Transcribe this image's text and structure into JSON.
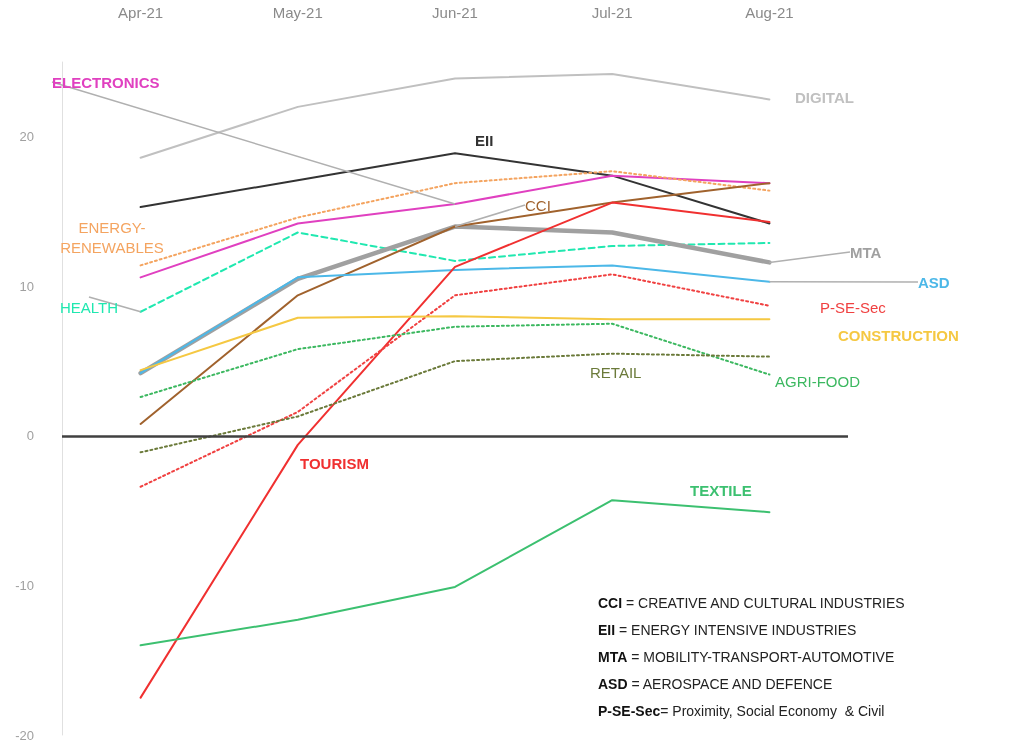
{
  "chart_data": {
    "type": "line",
    "categories": [
      "Apr-21",
      "May-21",
      "Jun-21",
      "Jul-21",
      "Aug-21"
    ],
    "ylim": [
      -20,
      25
    ],
    "yticks": [
      -20,
      -10,
      0,
      10,
      20
    ],
    "grid": false,
    "legend": false,
    "marker": "none",
    "ref_lines": [
      {
        "axis": "y",
        "value": 0,
        "color": "#404040"
      }
    ],
    "series": [
      {
        "name": "DIGITAL",
        "color": "#c0c0c0",
        "values": [
          18.6,
          22.0,
          23.9,
          24.2,
          22.5
        ]
      },
      {
        "name": "EII",
        "color": "#333333",
        "values": [
          15.3,
          17.1,
          18.9,
          17.4,
          14.2
        ]
      },
      {
        "name": "ELECTRONICS",
        "color": "#e040c0",
        "values": [
          10.6,
          14.2,
          15.5,
          17.4,
          16.9
        ]
      },
      {
        "name": "ENERGY-RENEWABLES",
        "color": "#f4a460",
        "line_style": "dotted",
        "values": [
          11.4,
          14.6,
          16.9,
          17.7,
          16.4
        ]
      },
      {
        "name": "HEALTH",
        "color": "#20e8b0",
        "line_style": "dashed",
        "values": [
          8.3,
          13.6,
          11.7,
          12.7,
          12.9
        ]
      },
      {
        "name": "MTA",
        "color": "#a0a0a0",
        "values": [
          4.2,
          10.5,
          14.0,
          13.6,
          11.6
        ]
      },
      {
        "name": "CCI",
        "color": "#a0622d",
        "values": [
          0.8,
          9.4,
          14.0,
          15.6,
          16.9
        ]
      },
      {
        "name": "ASD",
        "color": "#4cb8e8",
        "values": [
          4.2,
          10.6,
          11.1,
          11.4,
          10.3
        ]
      },
      {
        "name": "TOURISM",
        "color": "#f03030",
        "values": [
          -17.5,
          -0.6,
          11.3,
          15.6,
          14.3
        ]
      },
      {
        "name": "P-SE-Sec",
        "color": "#f04040",
        "line_style": "dotted",
        "values": [
          -3.4,
          1.6,
          9.4,
          10.8,
          8.7
        ]
      },
      {
        "name": "CONSTRUCTION",
        "color": "#f5c842",
        "values": [
          4.4,
          7.9,
          8.0,
          7.8,
          7.8
        ]
      },
      {
        "name": "AGRI-FOOD",
        "color": "#3cb860",
        "line_style": "dotted",
        "values": [
          2.6,
          5.8,
          7.3,
          7.5,
          4.1
        ]
      },
      {
        "name": "RETAIL",
        "color": "#6b7a3a",
        "line_style": "dotted",
        "values": [
          -1.1,
          1.3,
          5.0,
          5.5,
          5.3
        ]
      },
      {
        "name": "TEXTILE",
        "color": "#3cc070",
        "values": [
          -14.0,
          -12.3,
          -10.1,
          -4.3,
          -5.1
        ]
      }
    ],
    "annotations": [
      "CCI = CREATIVE AND CULTURAL INDUSTRIES",
      "EII = ENERGY INTENSIVE INDUSTRIES",
      "MTA = MOBILITY-TRANSPORT-AUTOMOTIVE",
      "ASD = AEROSPACE AND DEFENCE",
      "P-SE-Sec= Proximity, Social Economy  & Civil"
    ]
  }
}
